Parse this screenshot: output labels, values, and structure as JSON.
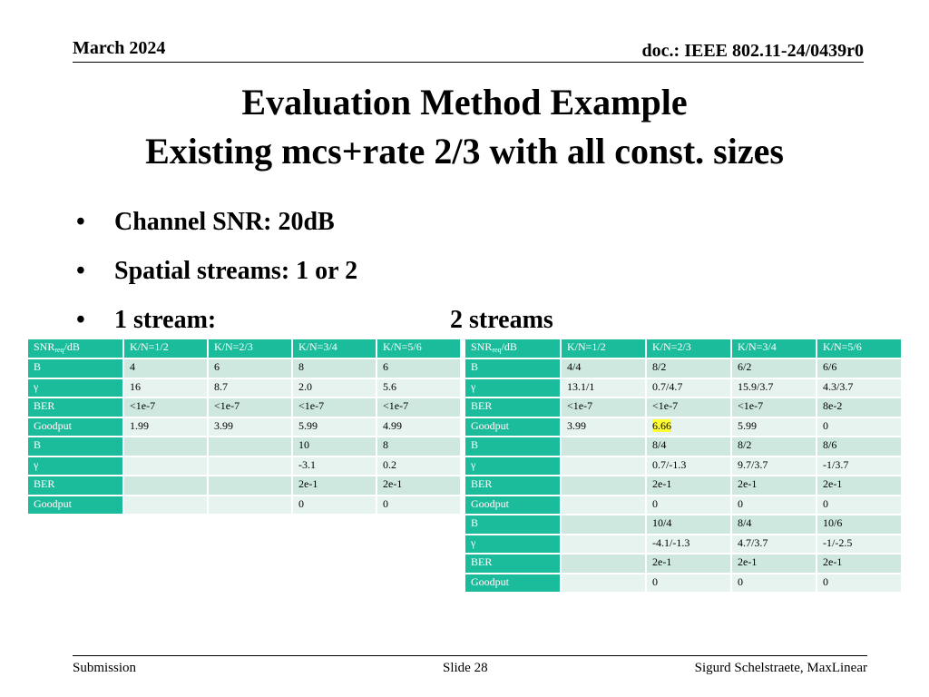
{
  "header": {
    "date": "March 2024",
    "doc": "doc.: IEEE 802.11-24/0439r0"
  },
  "title": {
    "line1": "Evaluation Method Example",
    "line2": "Existing mcs+rate 2/3 with all const. sizes"
  },
  "bullets": {
    "b1": "Channel SNR: 20dB",
    "b2": "Spatial streams: 1 or 2",
    "b3a": "1 stream:",
    "b3b": "2 streams",
    "dot": "•"
  },
  "table1": {
    "header": {
      "snr": "SNR",
      "req": "req",
      "db": "/dB",
      "cols": [
        "K/N=1/2",
        "K/N=2/3",
        "K/N=3/4",
        "K/N=5/6"
      ]
    },
    "rows": [
      {
        "label": "B",
        "cells": [
          "4",
          "6",
          "8",
          "6"
        ]
      },
      {
        "label": "γ",
        "cells": [
          "16",
          "8.7",
          "2.0",
          "5.6"
        ]
      },
      {
        "label": "BER",
        "cells": [
          "<1e-7",
          "<1e-7",
          "<1e-7",
          "<1e-7"
        ]
      },
      {
        "label": "Goodput",
        "cells": [
          "1.99",
          "3.99",
          "5.99",
          "4.99"
        ]
      },
      {
        "label": "B",
        "cells": [
          "",
          "",
          "10",
          "8"
        ]
      },
      {
        "label": "γ",
        "cells": [
          "",
          "",
          "-3.1",
          "0.2"
        ]
      },
      {
        "label": "BER",
        "cells": [
          "",
          "",
          "2e-1",
          "2e-1"
        ]
      },
      {
        "label": "Goodput",
        "cells": [
          "",
          "",
          "0",
          "0"
        ]
      }
    ]
  },
  "table2": {
    "header": {
      "snr": "SNR",
      "req": "req",
      "db": "/dB",
      "cols": [
        "K/N=1/2",
        "K/N=2/3",
        "K/N=3/4",
        "K/N=5/6"
      ]
    },
    "rows": [
      {
        "label": "B",
        "cells": [
          "4/4",
          "8/2",
          "6/2",
          "6/6"
        ]
      },
      {
        "label": "γ",
        "cells": [
          "13.1/1",
          "0.7/4.7",
          "15.9/3.7",
          "4.3/3.7"
        ]
      },
      {
        "label": "BER",
        "cells": [
          "<1e-7",
          "<1e-7",
          "<1e-7",
          "8e-2"
        ]
      },
      {
        "label": "Goodput",
        "cells": [
          "3.99",
          "6.66",
          "5.99",
          "0"
        ]
      },
      {
        "label": "B",
        "cells": [
          "",
          "8/4",
          "8/2",
          "8/6"
        ]
      },
      {
        "label": "γ",
        "cells": [
          "",
          "0.7/-1.3",
          "9.7/3.7",
          "-1/3.7"
        ]
      },
      {
        "label": "BER",
        "cells": [
          "",
          "2e-1",
          "2e-1",
          "2e-1"
        ]
      },
      {
        "label": "Goodput",
        "cells": [
          "",
          "0",
          "0",
          "0"
        ]
      },
      {
        "label": "B",
        "cells": [
          "",
          "10/4",
          "8/4",
          "10/6"
        ]
      },
      {
        "label": "γ",
        "cells": [
          "",
          "-4.1/-1.3",
          "4.7/3.7",
          "-1/-2.5"
        ]
      },
      {
        "label": "BER",
        "cells": [
          "",
          "2e-1",
          "2e-1",
          "2e-1"
        ]
      },
      {
        "label": "Goodput",
        "cells": [
          "",
          "0",
          "0",
          "0"
        ]
      }
    ],
    "highlight": {
      "row": 3,
      "col": 1,
      "color": "#ffff33"
    }
  },
  "colors": {
    "accent": "#1abc9c",
    "row_dark": "#cfe8df",
    "row_light": "#e7f3ee"
  },
  "footer": {
    "left": "Submission",
    "mid": "Slide 28",
    "right": "Sigurd Schelstraete, MaxLinear"
  }
}
